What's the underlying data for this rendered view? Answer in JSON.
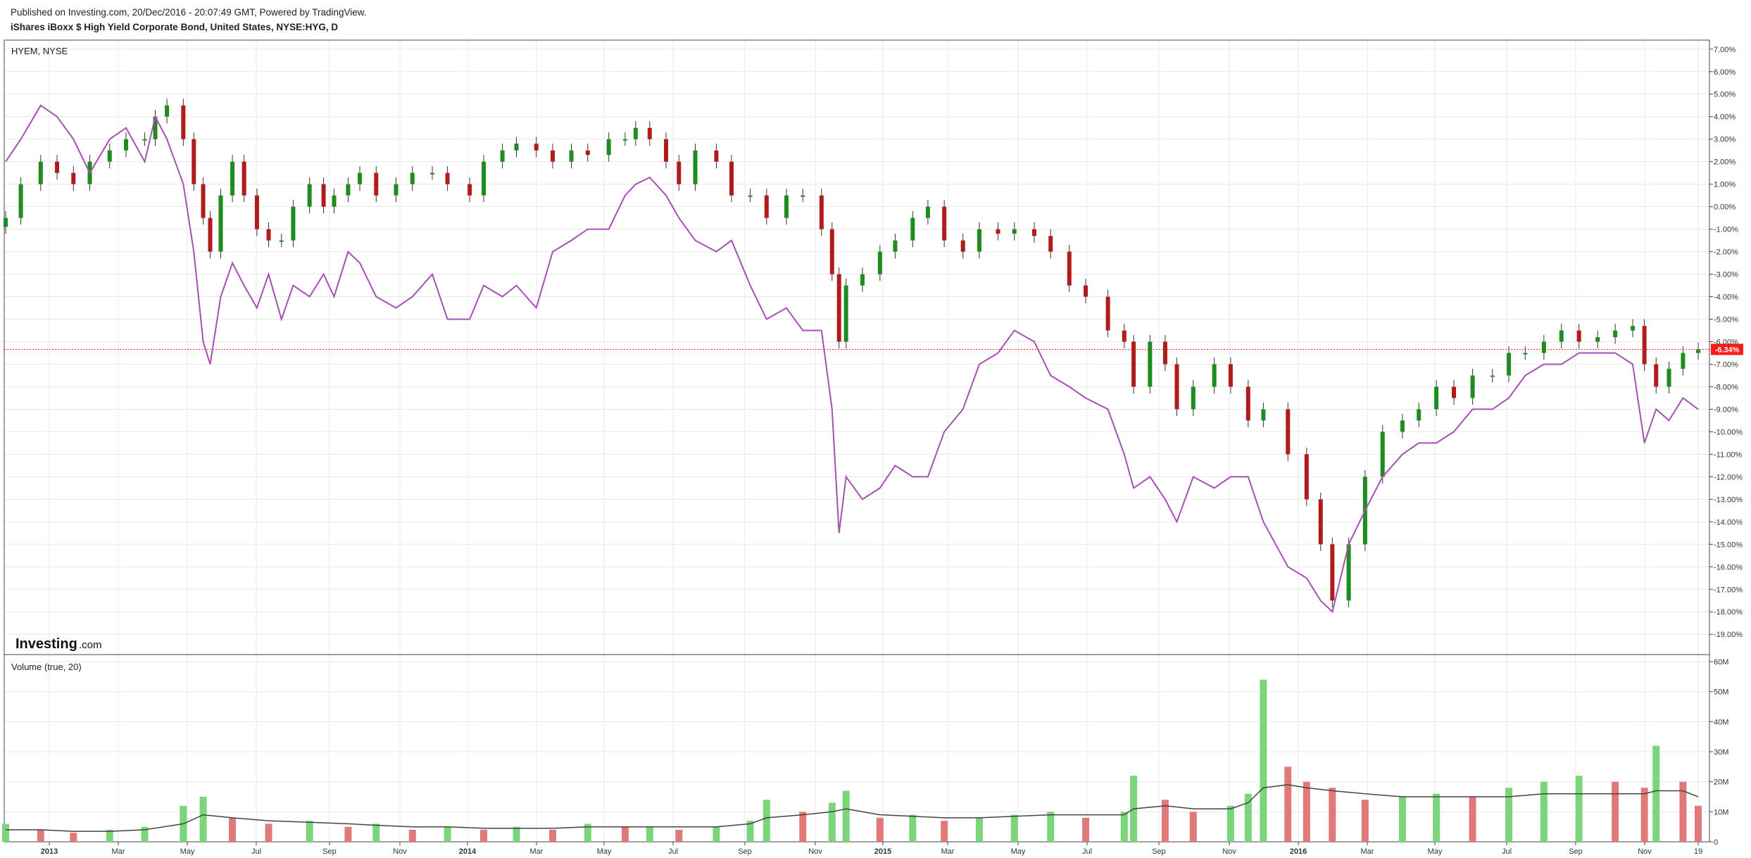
{
  "header": {
    "published": "Published on Investing.com, 20/Dec/2016 - 20:07:49 GMT, Powered by TradingView.",
    "title": "iShares iBoxx $ High Yield Corporate Bond, United States, NYSE:HYG, D"
  },
  "price_panel": {
    "label": "HYEM, NYSE",
    "last_value_label": "-6.34%"
  },
  "volume_panel": {
    "label": "Volume (true, 20)"
  },
  "logo": {
    "text": "Investing",
    "suffix": ".com"
  },
  "colors": {
    "up": "#1e8c1e",
    "down": "#b01c1c",
    "compare_line": "#a64fb4",
    "volume_up": "#7bd67b",
    "volume_down": "#e07a7a",
    "volume_ma": "#444444",
    "last_value": "#ff1a1a",
    "grid": "#e8e8e8"
  },
  "chart_data": [
    {
      "type": "line",
      "title": "HYEM, NYSE",
      "x_ticks": [
        "2013",
        "Mar",
        "May",
        "Jul",
        "Sep",
        "Nov",
        "2014",
        "Mar",
        "May",
        "Jul",
        "Sep",
        "Nov",
        "2015",
        "Mar",
        "May",
        "Jul",
        "Sep",
        "Nov",
        "2016",
        "Mar",
        "May",
        "Jul",
        "Sep",
        "Nov",
        "19"
      ],
      "y_ticks": [
        "7.00%",
        "6.00%",
        "5.00%",
        "4.00%",
        "3.00%",
        "2.00%",
        "1.00%",
        "0.00%",
        "-1.00%",
        "-2.00%",
        "-3.00%",
        "-4.00%",
        "-5.00%",
        "-6.00%",
        "-7.00%",
        "-8.00%",
        "-9.00%",
        "-10.00%",
        "-11.00%",
        "-12.00%",
        "-13.00%",
        "-14.00%",
        "-15.00%",
        "-16.00%",
        "-17.00%",
        "-18.00%",
        "-19.00%"
      ],
      "ylim": [
        -19.9,
        7.4
      ],
      "ylabel_unit": "%",
      "last_value": -6.34,
      "series": [
        {
          "name": "HYG",
          "style": "candlestick",
          "x": [
            "2013-01-02",
            "2013-01-15",
            "2013-02-01",
            "2013-02-15",
            "2013-03-01",
            "2013-03-15",
            "2013-04-01",
            "2013-04-15",
            "2013-05-01",
            "2013-05-10",
            "2013-05-20",
            "2013-06-03",
            "2013-06-12",
            "2013-06-20",
            "2013-06-26",
            "2013-07-05",
            "2013-07-15",
            "2013-07-25",
            "2013-08-05",
            "2013-08-15",
            "2013-08-26",
            "2013-09-05",
            "2013-09-19",
            "2013-10-01",
            "2013-10-10",
            "2013-10-22",
            "2013-11-01",
            "2013-11-15",
            "2013-12-02",
            "2013-12-16",
            "2014-01-02",
            "2014-01-15",
            "2014-02-03",
            "2014-02-15",
            "2014-03-03",
            "2014-03-15",
            "2014-04-01",
            "2014-04-15",
            "2014-05-01",
            "2014-05-15",
            "2014-06-02",
            "2014-06-16",
            "2014-06-25",
            "2014-07-07",
            "2014-07-21",
            "2014-08-01",
            "2014-08-15",
            "2014-09-02",
            "2014-09-15",
            "2014-10-01",
            "2014-10-15",
            "2014-11-01",
            "2014-11-15",
            "2014-12-01",
            "2014-12-10",
            "2014-12-16",
            "2014-12-22",
            "2015-01-05",
            "2015-01-20",
            "2015-02-02",
            "2015-02-17",
            "2015-03-02",
            "2015-03-16",
            "2015-04-01",
            "2015-04-15",
            "2015-05-01",
            "2015-05-15",
            "2015-06-01",
            "2015-06-15",
            "2015-07-01",
            "2015-07-15",
            "2015-08-03",
            "2015-08-17",
            "2015-08-25",
            "2015-09-08",
            "2015-09-21",
            "2015-10-01",
            "2015-10-15",
            "2015-11-02",
            "2015-11-16",
            "2015-12-01",
            "2015-12-14",
            "2016-01-04",
            "2016-01-20",
            "2016-02-01",
            "2016-02-11",
            "2016-02-25",
            "2016-03-10",
            "2016-03-25",
            "2016-04-11",
            "2016-04-25",
            "2016-05-10",
            "2016-05-25",
            "2016-06-10",
            "2016-06-27",
            "2016-07-11",
            "2016-07-25",
            "2016-08-10",
            "2016-08-25",
            "2016-09-09",
            "2016-09-25",
            "2016-10-10",
            "2016-10-25",
            "2016-11-04",
            "2016-11-14",
            "2016-11-25",
            "2016-12-07",
            "2016-12-20"
          ],
          "values": [
            -0.5,
            1.0,
            2.0,
            1.5,
            1.0,
            2.0,
            2.5,
            3.0,
            3.0,
            4.0,
            4.5,
            3.0,
            1.0,
            -0.5,
            -2.0,
            0.5,
            2.0,
            0.5,
            -1.0,
            -1.5,
            -1.5,
            0.0,
            1.0,
            0.0,
            0.5,
            1.0,
            1.5,
            0.5,
            1.0,
            1.5,
            1.5,
            1.0,
            0.5,
            2.0,
            2.5,
            2.8,
            2.5,
            2.0,
            2.5,
            2.3,
            3.0,
            3.0,
            3.5,
            3.0,
            2.0,
            1.0,
            2.5,
            2.0,
            0.5,
            0.5,
            -0.5,
            0.5,
            0.5,
            -1.0,
            -3.0,
            -6.0,
            -3.5,
            -3.0,
            -2.0,
            -1.5,
            -0.5,
            0.0,
            -1.5,
            -2.0,
            -1.0,
            -1.2,
            -1.0,
            -1.3,
            -2.0,
            -3.5,
            -4.0,
            -5.5,
            -6.0,
            -8.0,
            -6.0,
            -7.0,
            -9.0,
            -8.0,
            -7.0,
            -8.0,
            -9.5,
            -9.0,
            -11.0,
            -13.0,
            -15.0,
            -17.5,
            -15.0,
            -12.0,
            -10.0,
            -9.5,
            -9.0,
            -8.0,
            -8.5,
            -7.5,
            -7.5,
            -6.5,
            -6.5,
            -6.0,
            -5.5,
            -6.0,
            -5.8,
            -5.5,
            -5.3,
            -7.0,
            -8.0,
            -7.2,
            -6.5,
            -6.34
          ]
        },
        {
          "name": "HYEM",
          "style": "line",
          "x": [
            "2013-01-02",
            "2013-01-15",
            "2013-02-01",
            "2013-02-15",
            "2013-03-01",
            "2013-03-15",
            "2013-04-01",
            "2013-04-15",
            "2013-05-01",
            "2013-05-10",
            "2013-05-20",
            "2013-06-03",
            "2013-06-12",
            "2013-06-20",
            "2013-06-26",
            "2013-07-05",
            "2013-07-15",
            "2013-07-25",
            "2013-08-05",
            "2013-08-15",
            "2013-08-26",
            "2013-09-05",
            "2013-09-19",
            "2013-10-01",
            "2013-10-10",
            "2013-10-22",
            "2013-11-01",
            "2013-11-15",
            "2013-12-02",
            "2013-12-16",
            "2014-01-02",
            "2014-01-15",
            "2014-02-03",
            "2014-02-15",
            "2014-03-03",
            "2014-03-15",
            "2014-04-01",
            "2014-04-15",
            "2014-05-01",
            "2014-05-15",
            "2014-06-02",
            "2014-06-16",
            "2014-06-25",
            "2014-07-07",
            "2014-07-21",
            "2014-08-01",
            "2014-08-15",
            "2014-09-02",
            "2014-09-15",
            "2014-10-01",
            "2014-10-15",
            "2014-11-01",
            "2014-11-15",
            "2014-12-01",
            "2014-12-10",
            "2014-12-16",
            "2014-12-22",
            "2015-01-05",
            "2015-01-20",
            "2015-02-02",
            "2015-02-17",
            "2015-03-02",
            "2015-03-16",
            "2015-04-01",
            "2015-04-15",
            "2015-05-01",
            "2015-05-15",
            "2015-06-01",
            "2015-06-15",
            "2015-07-01",
            "2015-07-15",
            "2015-08-03",
            "2015-08-17",
            "2015-08-25",
            "2015-09-08",
            "2015-09-21",
            "2015-10-01",
            "2015-10-15",
            "2015-11-02",
            "2015-11-16",
            "2015-12-01",
            "2015-12-14",
            "2016-01-04",
            "2016-01-20",
            "2016-02-01",
            "2016-02-11",
            "2016-02-25",
            "2016-03-10",
            "2016-03-25",
            "2016-04-11",
            "2016-04-25",
            "2016-05-10",
            "2016-05-25",
            "2016-06-10",
            "2016-06-27",
            "2016-07-11",
            "2016-07-25",
            "2016-08-10",
            "2016-08-25",
            "2016-09-09",
            "2016-09-25",
            "2016-10-10",
            "2016-10-25",
            "2016-11-04",
            "2016-11-14",
            "2016-11-25",
            "2016-12-07",
            "2016-12-20"
          ],
          "values": [
            2.0,
            3.0,
            4.5,
            4.0,
            3.0,
            1.5,
            3.0,
            3.5,
            2.0,
            4.0,
            3.0,
            1.0,
            -2.0,
            -6.0,
            -7.0,
            -4.0,
            -2.5,
            -3.5,
            -4.5,
            -3.0,
            -5.0,
            -3.5,
            -4.0,
            -3.0,
            -4.0,
            -2.0,
            -2.5,
            -4.0,
            -4.5,
            -4.0,
            -3.0,
            -5.0,
            -5.0,
            -3.5,
            -4.0,
            -3.5,
            -4.5,
            -2.0,
            -1.5,
            -1.0,
            -1.0,
            0.5,
            1.0,
            1.3,
            0.5,
            -0.5,
            -1.5,
            -2.0,
            -1.5,
            -3.5,
            -5.0,
            -4.5,
            -5.5,
            -5.5,
            -9.0,
            -14.5,
            -12.0,
            -13.0,
            -12.5,
            -11.5,
            -12.0,
            -12.0,
            -10.0,
            -9.0,
            -7.0,
            -6.5,
            -5.5,
            -6.0,
            -7.5,
            -8.0,
            -8.5,
            -9.0,
            -11.0,
            -12.5,
            -12.0,
            -13.0,
            -14.0,
            -12.0,
            -12.5,
            -12.0,
            -12.0,
            -14.0,
            -16.0,
            -16.5,
            -17.5,
            -18.0,
            -15.0,
            -13.5,
            -12.0,
            -11.0,
            -10.5,
            -10.5,
            -10.0,
            -9.0,
            -9.0,
            -8.5,
            -7.5,
            -7.0,
            -7.0,
            -6.5,
            -6.5,
            -6.5,
            -7.0,
            -10.5,
            -9.0,
            -9.5,
            -8.5,
            -9.0
          ]
        }
      ]
    },
    {
      "type": "bar",
      "title": "Volume (true, 20)",
      "y_ticks": [
        "60M",
        "50M",
        "40M",
        "30M",
        "20M",
        "10M",
        "0"
      ],
      "ylim": [
        0,
        60
      ],
      "unit": "M",
      "x": [
        "2013-01-02",
        "2013-02-01",
        "2013-03-01",
        "2013-04-01",
        "2013-05-01",
        "2013-06-03",
        "2013-06-20",
        "2013-07-15",
        "2013-08-15",
        "2013-09-19",
        "2013-10-22",
        "2013-11-15",
        "2013-12-16",
        "2014-01-15",
        "2014-02-15",
        "2014-03-15",
        "2014-04-15",
        "2014-05-15",
        "2014-06-16",
        "2014-07-07",
        "2014-08-01",
        "2014-09-02",
        "2014-10-01",
        "2014-10-15",
        "2014-11-15",
        "2014-12-10",
        "2014-12-22",
        "2015-01-20",
        "2015-02-17",
        "2015-03-16",
        "2015-04-15",
        "2015-05-15",
        "2015-06-15",
        "2015-07-15",
        "2015-08-17",
        "2015-08-25",
        "2015-09-21",
        "2015-10-15",
        "2015-11-16",
        "2015-12-01",
        "2015-12-14",
        "2016-01-04",
        "2016-01-20",
        "2016-02-11",
        "2016-03-10",
        "2016-04-11",
        "2016-05-10",
        "2016-06-10",
        "2016-07-11",
        "2016-08-10",
        "2016-09-09",
        "2016-10-10",
        "2016-11-04",
        "2016-11-14",
        "2016-12-07",
        "2016-12-20"
      ],
      "values": [
        6,
        4,
        3,
        4,
        5,
        12,
        15,
        8,
        6,
        7,
        5,
        6,
        4,
        5,
        4,
        5,
        4,
        6,
        5,
        5,
        4,
        5,
        7,
        14,
        10,
        13,
        17,
        8,
        9,
        7,
        8,
        9,
        10,
        8,
        10,
        22,
        14,
        10,
        12,
        16,
        54,
        25,
        20,
        18,
        14,
        15,
        16,
        15,
        18,
        20,
        22,
        20,
        18,
        32,
        20,
        12
      ],
      "ma_values": [
        4,
        4,
        3.5,
        3.5,
        4,
        6,
        9,
        8,
        7,
        6.5,
        6,
        5.5,
        5,
        5,
        4.5,
        4.5,
        4.5,
        5,
        5,
        5,
        5,
        5,
        6,
        8,
        9,
        10,
        11,
        9,
        8.5,
        8,
        8,
        8.5,
        9,
        9,
        9,
        11,
        12,
        11,
        11,
        13,
        18,
        19,
        18,
        17,
        16,
        15,
        15,
        15,
        15,
        16,
        16,
        16,
        16,
        17,
        17,
        15
      ]
    }
  ]
}
